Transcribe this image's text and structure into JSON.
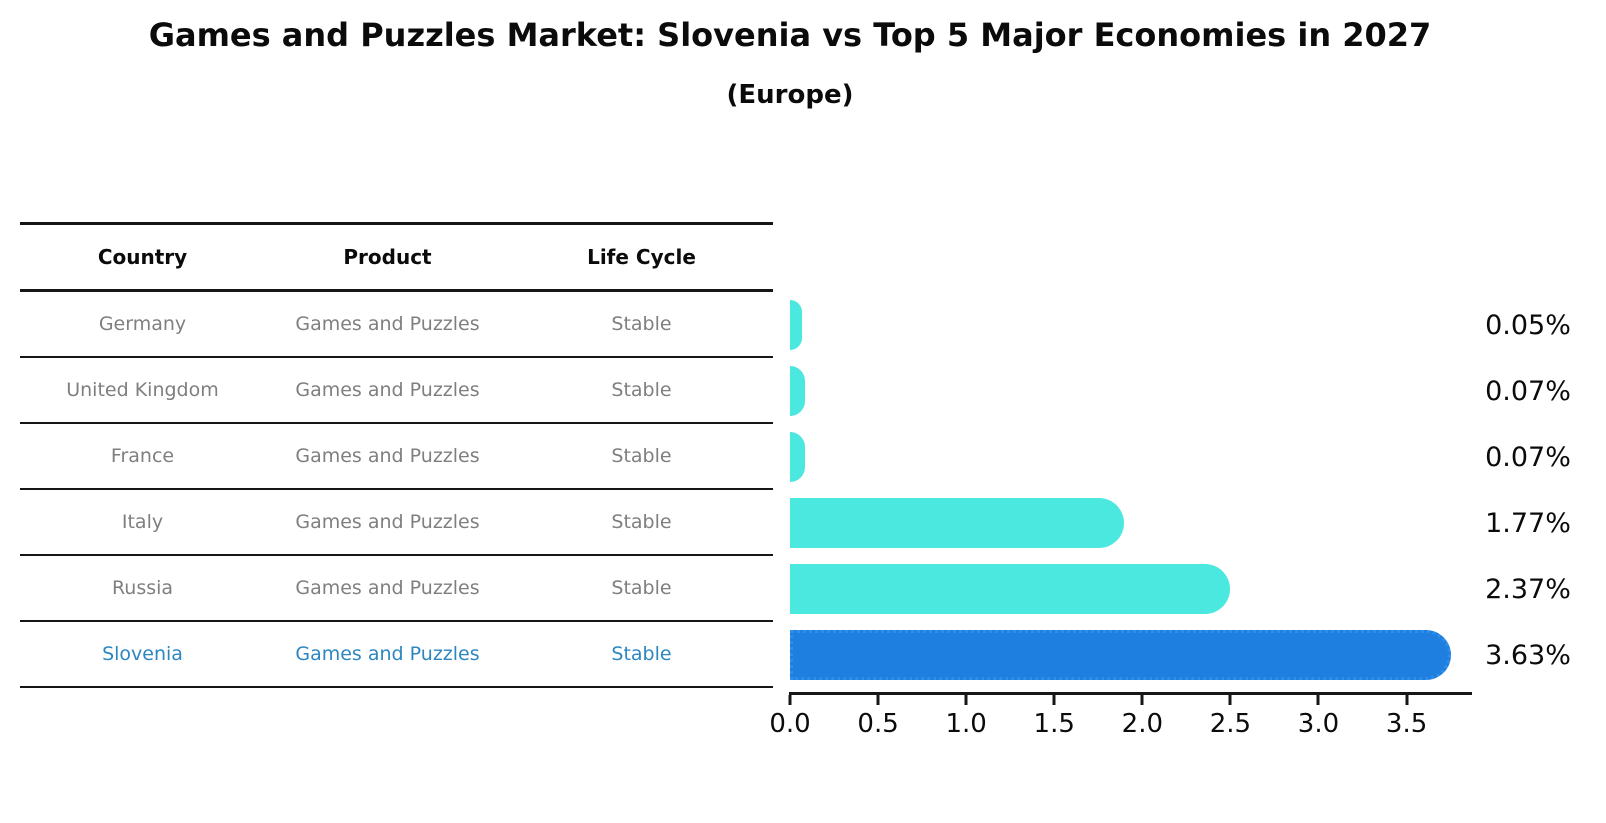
{
  "title": "Games and Puzzles Market: Slovenia vs Top 5 Major Economies in 2027",
  "subtitle": "(Europe)",
  "table": {
    "headers": {
      "country": "Country",
      "product": "Product",
      "life_cycle": "Life Cycle"
    },
    "rows": [
      {
        "country": "Germany",
        "product": "Games and Puzzles",
        "life_cycle": "Stable",
        "highlight": false
      },
      {
        "country": "United Kingdom",
        "product": "Games and Puzzles",
        "life_cycle": "Stable",
        "highlight": false
      },
      {
        "country": "France",
        "product": "Games and Puzzles",
        "life_cycle": "Stable",
        "highlight": false
      },
      {
        "country": "Italy",
        "product": "Games and Puzzles",
        "life_cycle": "Stable",
        "highlight": false
      },
      {
        "country": "Russia",
        "product": "Games and Puzzles",
        "life_cycle": "Stable",
        "highlight": false
      },
      {
        "country": "Slovenia",
        "product": "Games and Puzzles",
        "life_cycle": "Stable",
        "highlight": true
      }
    ]
  },
  "chart_data": {
    "type": "bar",
    "orientation": "horizontal",
    "title": "Games and Puzzles Market: Slovenia vs Top 5 Major Economies in 2027",
    "subtitle": "(Europe)",
    "categories": [
      "Germany",
      "United Kingdom",
      "France",
      "Italy",
      "Russia",
      "Slovenia"
    ],
    "values": [
      0.05,
      0.07,
      0.07,
      1.77,
      2.37,
      3.63
    ],
    "value_labels": [
      "0.05%",
      "0.07%",
      "0.07%",
      "1.77%",
      "2.37%",
      "3.63%"
    ],
    "x_ticks": [
      0.0,
      0.5,
      1.0,
      1.5,
      2.0,
      2.5,
      3.0,
      3.5
    ],
    "x_tick_labels": [
      "0.0",
      "0.5",
      "1.0",
      "1.5",
      "2.0",
      "2.5",
      "3.0",
      "3.5"
    ],
    "xlim": [
      0,
      3.86
    ],
    "xlabel": "",
    "ylabel": "",
    "grid": false,
    "legend": false,
    "highlight_index": 5
  },
  "colors": {
    "bar": "#4ae8de",
    "highlight_bar": "#1e7fe1",
    "highlight_bar_border": "#2e8ee9",
    "row_text": "#7f7f7f",
    "highlight_text": "#2e86c1",
    "line": "#161616"
  }
}
